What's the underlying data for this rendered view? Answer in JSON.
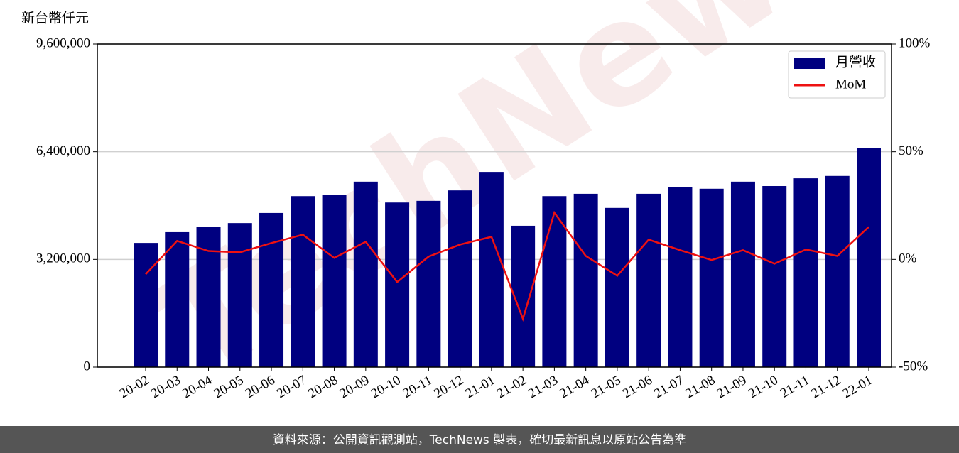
{
  "chart_data": {
    "type": "bar-line",
    "y_label": "新台幣仟元",
    "watermark": "TechNews",
    "source": "資料來源：公開資訊觀測站，TechNews 製表，確切最新訊息以原站公告為準",
    "categories": [
      "20-02",
      "20-03",
      "20-04",
      "20-05",
      "20-06",
      "20-07",
      "20-08",
      "20-09",
      "20-10",
      "20-11",
      "20-12",
      "21-01",
      "21-02",
      "21-03",
      "21-04",
      "21-05",
      "21-06",
      "21-07",
      "21-08",
      "21-09",
      "21-10",
      "21-11",
      "21-12",
      "22-01"
    ],
    "series": [
      {
        "name": "月營收",
        "color": "#000080",
        "type": "bar",
        "values": [
          3690000,
          4010000,
          4160000,
          4280000,
          4580000,
          5080000,
          5110000,
          5510000,
          4890000,
          4940000,
          5250000,
          5800000,
          4200000,
          5080000,
          5150000,
          4730000,
          5150000,
          5340000,
          5300000,
          5510000,
          5380000,
          5610000,
          5680000,
          6500000
        ]
      },
      {
        "name": "MoM",
        "color": "#ee1111",
        "type": "line",
        "axis": "y2",
        "values": [
          -6.9,
          8.6,
          3.9,
          3.3,
          7.6,
          11.5,
          0.7,
          8.2,
          -10.5,
          1.3,
          6.9,
          10.5,
          -27.6,
          21.7,
          1.6,
          -7.6,
          9.2,
          4.3,
          -0.3,
          4.3,
          -2.0,
          4.6,
          1.6,
          15.1
        ]
      }
    ],
    "ylim": [
      0,
      9600000
    ],
    "yticks": [
      0,
      {
        "value": 3200000,
        "label": "3,200,000"
      },
      {
        "value": 6400000,
        "label": "6,400,000"
      },
      {
        "value": 9600000,
        "label": "9,600,000"
      }
    ],
    "y2lim": [
      -50,
      100
    ],
    "y2ticks": [
      {
        "value": -50,
        "label": "-50%"
      },
      {
        "value": 0,
        "label": "0%"
      },
      {
        "value": 50,
        "label": "50%"
      },
      {
        "value": 100,
        "label": "100%"
      }
    ],
    "grid": true,
    "legend": "upper right"
  }
}
